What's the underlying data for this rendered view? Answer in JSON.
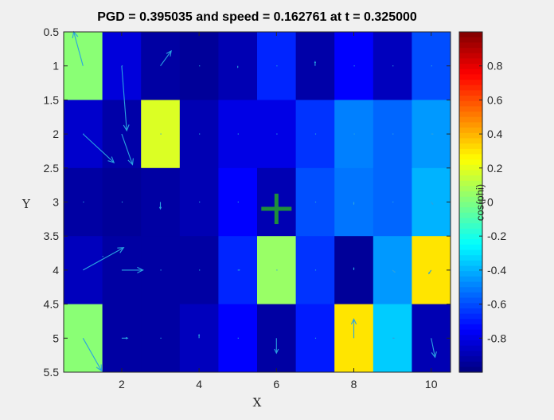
{
  "chart_data": {
    "type": "heatmap",
    "title": "PGD = 0.395035 and speed = 0.162761 at t = 0.325000",
    "xlabel": "X",
    "ylabel": "Y",
    "xlim": [
      0.5,
      10.5
    ],
    "ylim": [
      0.5,
      5.5
    ],
    "y_reversed": true,
    "x_ticks": [
      2,
      4,
      6,
      8,
      10
    ],
    "x_tick_labels": [
      "2",
      "4",
      "6",
      "8",
      "10"
    ],
    "y_ticks": [
      0.5,
      1,
      1.5,
      2,
      2.5,
      3,
      3.5,
      4,
      4.5,
      5,
      5.5
    ],
    "y_tick_labels": [
      "0.5",
      "1",
      "1.5",
      "2",
      "2.5",
      "3",
      "3.5",
      "4",
      "4.5",
      "5",
      "5.5"
    ],
    "colormap": "jet",
    "clim": [
      -1,
      1
    ],
    "colorbar": {
      "label": "cos(phi)",
      "ticks": [
        -0.8,
        -0.6,
        -0.4,
        -0.2,
        0,
        0.2,
        0.4,
        0.6,
        0.8
      ],
      "tick_labels": [
        "-0.8",
        "-0.6",
        "-0.4",
        "-0.2",
        "0",
        "0.2",
        "0.4",
        "0.6",
        "0.8"
      ]
    },
    "values": [
      [
        0.02,
        -0.82,
        -0.93,
        -0.95,
        -0.9,
        -0.68,
        -0.92,
        -0.75,
        -0.88,
        -0.6
      ],
      [
        -0.85,
        -0.92,
        0.18,
        -0.9,
        -0.8,
        -0.8,
        -0.65,
        -0.5,
        -0.55,
        -0.45
      ],
      [
        -0.93,
        -0.95,
        -0.93,
        -0.9,
        -0.75,
        -0.9,
        -0.6,
        -0.52,
        -0.55,
        -0.4
      ],
      [
        -0.88,
        -0.93,
        -0.93,
        -0.93,
        -0.68,
        0.05,
        -0.65,
        -0.95,
        -0.45,
        0.3
      ],
      [
        0.02,
        -0.93,
        -0.93,
        -0.88,
        -0.75,
        -0.93,
        -0.7,
        0.3,
        -0.35,
        -0.9
      ]
    ],
    "quiver": [
      {
        "x": 1,
        "y": 1,
        "u": -0.24,
        "v": -0.5
      },
      {
        "x": 2,
        "y": 1,
        "u": 0,
        "v": 0
      },
      {
        "x": 3,
        "y": 1,
        "u": 0.28,
        "v": -0.22
      },
      {
        "x": 4,
        "y": 1,
        "u": 0,
        "v": 0
      },
      {
        "x": 5,
        "y": 1,
        "u": 0,
        "v": 0.02
      },
      {
        "x": 6,
        "y": 1,
        "u": 0,
        "v": 0
      },
      {
        "x": 7,
        "y": 1,
        "u": 0,
        "v": -0.06
      },
      {
        "x": 8,
        "y": 1,
        "u": 0,
        "v": 0
      },
      {
        "x": 9,
        "y": 1,
        "u": 0,
        "v": 0
      },
      {
        "x": 10,
        "y": 1,
        "u": 0,
        "v": 0
      },
      {
        "x": 2,
        "y": 1,
        "u": 0.13,
        "v": 0.95
      },
      {
        "x": 1,
        "y": 2,
        "u": 0,
        "v": 0
      },
      {
        "x": 2,
        "y": 2,
        "u": 0.28,
        "v": 0.45
      },
      {
        "x": 3,
        "y": 2,
        "u": 0.02,
        "v": 0
      },
      {
        "x": 4,
        "y": 2,
        "u": 0.02,
        "v": 0
      },
      {
        "x": 5,
        "y": 2,
        "u": 0.02,
        "v": 0.01
      },
      {
        "x": 6,
        "y": 2,
        "u": 0,
        "v": 0
      },
      {
        "x": 7,
        "y": 2,
        "u": 0.02,
        "v": 0
      },
      {
        "x": 8,
        "y": 2,
        "u": 0,
        "v": 0
      },
      {
        "x": 9,
        "y": 2,
        "u": 0,
        "v": 0
      },
      {
        "x": 10,
        "y": 2,
        "u": 0.04,
        "v": 0
      },
      {
        "x": 1,
        "y": 2,
        "u": 0.8,
        "v": 0.42
      },
      {
        "x": 1,
        "y": 3,
        "u": 0,
        "v": 0
      },
      {
        "x": 2,
        "y": 3,
        "u": 0,
        "v": 0
      },
      {
        "x": 3,
        "y": 3,
        "u": 0,
        "v": 0.1
      },
      {
        "x": 4,
        "y": 3,
        "u": 0,
        "v": 0
      },
      {
        "x": 5,
        "y": 3,
        "u": 0,
        "v": 0
      },
      {
        "x": 6,
        "y": 3,
        "u": 0,
        "v": 0
      },
      {
        "x": 7,
        "y": 3,
        "u": 0,
        "v": 0
      },
      {
        "x": 8,
        "y": 3,
        "u": 0,
        "v": 0.03
      },
      {
        "x": 9,
        "y": 3,
        "u": 0,
        "v": 0
      },
      {
        "x": 10,
        "y": 3,
        "u": 0.04,
        "v": 0.03
      },
      {
        "x": 1,
        "y": 4,
        "u": 1.05,
        "v": -0.33
      },
      {
        "x": 1.5,
        "y": 3.8,
        "u": 0,
        "v": 0
      },
      {
        "x": 2,
        "y": 4,
        "u": 0.55,
        "v": 0
      },
      {
        "x": 3,
        "y": 4,
        "u": 0,
        "v": 0
      },
      {
        "x": 4,
        "y": 4,
        "u": 0,
        "v": 0
      },
      {
        "x": 5,
        "y": 4,
        "u": 0.04,
        "v": 0
      },
      {
        "x": 6,
        "y": 4,
        "u": 0,
        "v": 0
      },
      {
        "x": 7,
        "y": 4,
        "u": 0,
        "v": 0
      },
      {
        "x": 8,
        "y": 4,
        "u": 0,
        "v": -0.03
      },
      {
        "x": 9,
        "y": 4,
        "u": 0.06,
        "v": 0.03
      },
      {
        "x": 10,
        "y": 4,
        "u": -0.06,
        "v": 0.05
      },
      {
        "x": 1,
        "y": 5,
        "u": 0.48,
        "v": 0.48
      },
      {
        "x": 2,
        "y": 5,
        "u": 0.15,
        "v": 0
      },
      {
        "x": 3,
        "y": 5,
        "u": 0.02,
        "v": 0
      },
      {
        "x": 4,
        "y": 5,
        "u": 0,
        "v": -0.05
      },
      {
        "x": 5,
        "y": 5,
        "u": 0,
        "v": 0
      },
      {
        "x": 6,
        "y": 5,
        "u": 0,
        "v": 0.22
      },
      {
        "x": 7,
        "y": 5,
        "u": 0,
        "v": 0
      },
      {
        "x": 8,
        "y": 5,
        "u": 0,
        "v": -0.28
      },
      {
        "x": 9,
        "y": 5,
        "u": 0.04,
        "v": 0
      },
      {
        "x": 10,
        "y": 5,
        "u": 0.1,
        "v": 0.28
      }
    ],
    "marker": {
      "x": 6,
      "y": 3.1,
      "symbol": "+",
      "color": "#1f8f3a"
    },
    "arrow_color": "#2aa3e0",
    "grid": false
  }
}
